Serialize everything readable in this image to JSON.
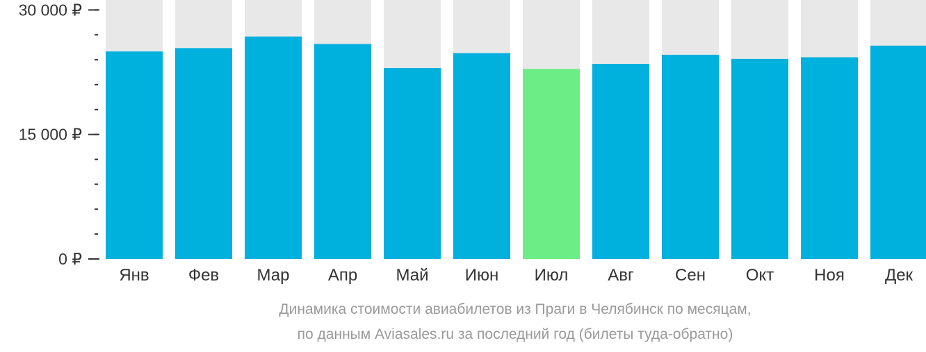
{
  "chart_data": {
    "type": "bar",
    "caption_line1": "Динамика стоимости авиабилетов из Праги в Челябинск по месяцам,",
    "caption_line2": "по данным Aviasales.ru за последний год (билеты туда-обратно)",
    "categories": [
      "Янв",
      "Фев",
      "Мар",
      "Апр",
      "Май",
      "Июн",
      "Июл",
      "Авг",
      "Сен",
      "Окт",
      "Ноя",
      "Дек"
    ],
    "values": [
      25000,
      25400,
      26800,
      25900,
      23000,
      24800,
      22900,
      23500,
      24600,
      24100,
      24300,
      25700
    ],
    "ylim": [
      0,
      31200
    ],
    "y_ticks": [
      {
        "value": 0,
        "label": "0 ₽"
      },
      {
        "value": 15000,
        "label": "15 000 ₽"
      },
      {
        "value": 30000,
        "label": "30 000 ₽"
      }
    ],
    "y_minor_step": 3000,
    "highlight_index": 6,
    "colors": {
      "bar": "#00b0dd",
      "highlight": "#6ced85",
      "background_column": "#e8e8e8",
      "axis_text": "#333333",
      "caption": "#9a9a9a",
      "tick": "#333333"
    }
  }
}
